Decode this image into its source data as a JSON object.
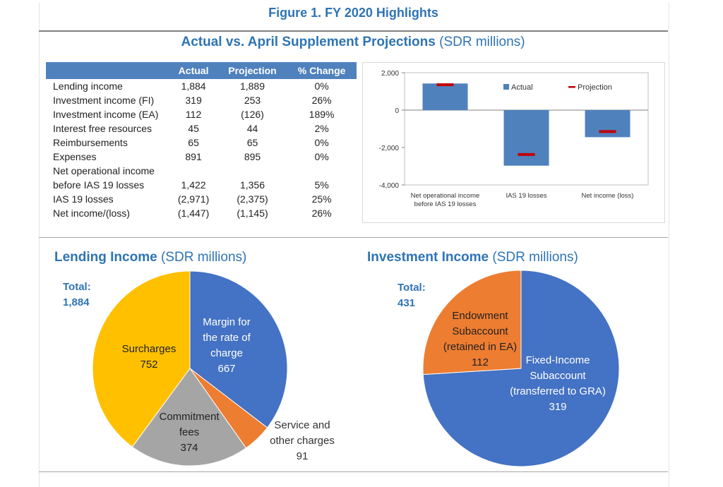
{
  "figure": {
    "title": "Figure 1. FY 2020 Highlights",
    "section_title_bold": "Actual vs. April Supplement Projections",
    "section_title_unit": "(SDR millions)"
  },
  "table": {
    "headers": [
      "",
      "Actual",
      "Projection",
      "% Change"
    ],
    "rows": [
      {
        "label": "Lending income",
        "actual": "1,884",
        "projection": "1,889",
        "change": "0%"
      },
      {
        "label": "Investment income (FI)",
        "actual": "319",
        "projection": "253",
        "change": "26%"
      },
      {
        "label": "Investment income (EA)",
        "actual": "112",
        "projection": "(126)",
        "change": "189%"
      },
      {
        "label": "Interest free resources",
        "actual": "45",
        "projection": "44",
        "change": "2%"
      },
      {
        "label": "Reimbursements",
        "actual": "65",
        "projection": "65",
        "change": "0%"
      },
      {
        "label": "Expenses",
        "actual": "891",
        "projection": "895",
        "change": "0%"
      },
      {
        "label": "Net operational income",
        "actual": "",
        "projection": "",
        "change": ""
      },
      {
        "label": "before IAS 19 losses",
        "actual": "1,422",
        "projection": "1,356",
        "change": "5%"
      },
      {
        "label": "IAS 19 losses",
        "actual": "(2,971)",
        "projection": "(2,375)",
        "change": "25%"
      },
      {
        "label": "Net income/(loss)",
        "actual": "(1,447)",
        "projection": "(1,145)",
        "change": "26%"
      }
    ]
  },
  "colors": {
    "title_blue": "#2e74b5",
    "header_blue": "#4f81bd",
    "bar_blue": "#4f81bd",
    "projection_red": "#c00000",
    "pie_blue": "#4472c4",
    "pie_orange": "#ed7d31",
    "pie_gray": "#a5a5a5",
    "pie_yellow": "#ffc000"
  },
  "lending": {
    "title_bold": "Lending Income",
    "title_unit": "(SDR millions)",
    "total_label": "Total:",
    "total_value": "1,884"
  },
  "investment": {
    "title_bold": "Investment Income",
    "title_unit": "(SDR millions)",
    "total_label": "Total:",
    "total_value": "431"
  },
  "chart_data": [
    {
      "type": "bar",
      "categories": [
        [
          "Net operational income",
          "before IAS 19 losses"
        ],
        [
          "IAS 19 losses"
        ],
        [
          "Net income (loss)"
        ]
      ],
      "series": [
        {
          "name": "Actual",
          "values": [
            1422,
            -2971,
            -1447
          ],
          "style": "bar"
        },
        {
          "name": "Projection",
          "values": [
            1356,
            -2375,
            -1145
          ],
          "style": "marker"
        }
      ],
      "ylim": [
        -4000,
        2000
      ],
      "yticks": [
        2000,
        0,
        -2000,
        -4000
      ],
      "ytick_labels": [
        "2,000",
        "0",
        "-2,000",
        "-4,000"
      ],
      "legend": "top-right",
      "grid": false
    },
    {
      "type": "pie",
      "labels": [
        [
          "Margin for",
          "the rate of",
          "charge"
        ],
        [
          "Service and",
          "other charges"
        ],
        [
          "Commitment",
          "fees"
        ],
        [
          "Surcharges"
        ]
      ],
      "values": [
        667,
        91,
        374,
        752
      ],
      "value_labels": [
        "667",
        "91",
        "374",
        "752"
      ],
      "colors": [
        "#4472c4",
        "#ed7d31",
        "#a5a5a5",
        "#ffc000"
      ]
    },
    {
      "type": "pie",
      "labels": [
        [
          "Fixed-Income",
          "Subaccount",
          "(transferred to GRA)"
        ],
        [
          "Endowment",
          "Subaccount",
          "(retained in EA)"
        ]
      ],
      "values": [
        319,
        112
      ],
      "value_labels": [
        "319",
        "112"
      ],
      "colors": [
        "#4472c4",
        "#ed7d31"
      ]
    }
  ]
}
